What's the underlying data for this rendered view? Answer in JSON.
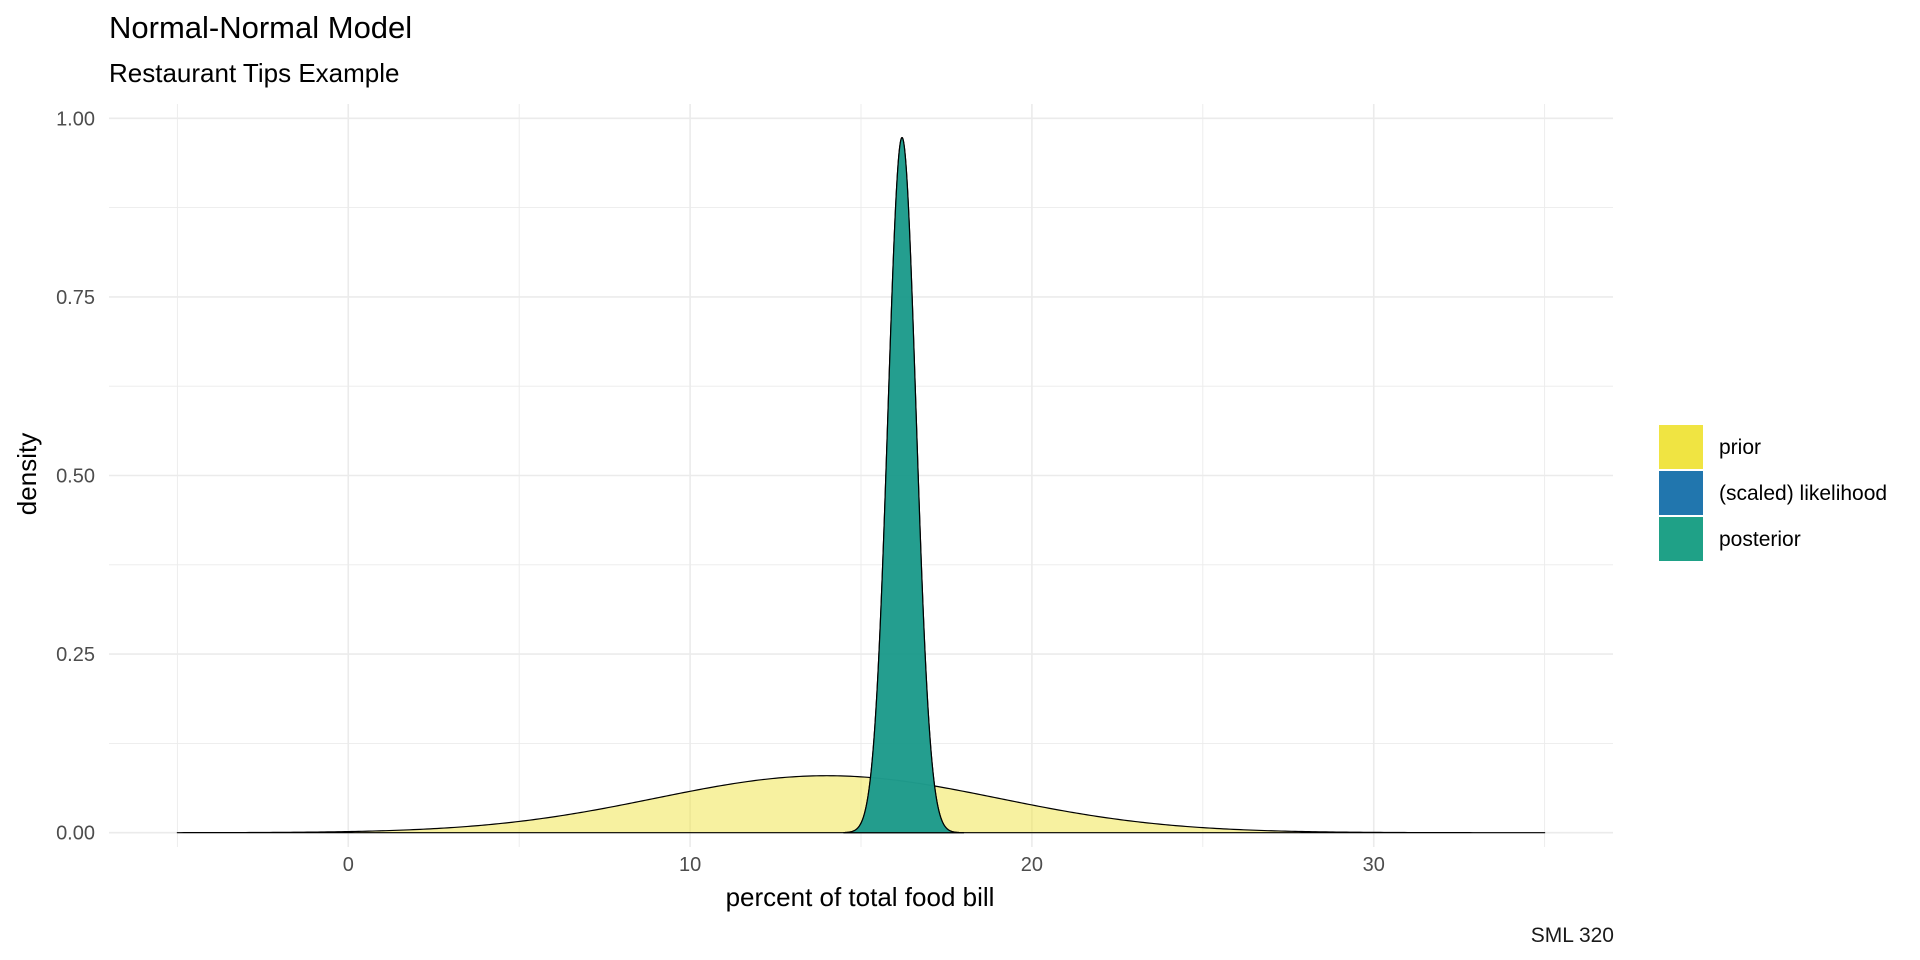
{
  "chart_data": {
    "type": "area",
    "title": "Normal-Normal Model",
    "subtitle": "Restaurant Tips Example",
    "caption": "SML 320",
    "xlabel": "percent of total food bill",
    "ylabel": "density",
    "xlim": [
      -7,
      37
    ],
    "ylim": [
      -0.02,
      1.02
    ],
    "x_ticks": [
      0,
      10,
      20,
      30
    ],
    "x_tick_labels": [
      "0",
      "10",
      "20",
      "30"
    ],
    "y_ticks": [
      0,
      0.25,
      0.5,
      0.75,
      1.0
    ],
    "y_tick_labels": [
      "0.00",
      "0.25",
      "0.50",
      "0.75",
      "1.00"
    ],
    "grid": true,
    "legend_position": "right",
    "series": [
      {
        "name": "prior",
        "color": "#f0e442",
        "fill_opacity": 0.5,
        "dist": "normal",
        "mean": 14,
        "sd": 5,
        "x_range": [
          -5,
          35
        ]
      },
      {
        "name": "(scaled) likelihood",
        "color": "#2176ae",
        "fill_opacity": 0.85,
        "dist": "normal",
        "mean": 16.2,
        "sd": 0.41,
        "x_range": [
          14.5,
          18
        ]
      },
      {
        "name": "posterior",
        "color": "#1fa187",
        "fill_opacity": 0.85,
        "dist": "normal",
        "mean": 16.2,
        "sd": 0.41,
        "x_range": [
          14.5,
          18
        ]
      }
    ]
  }
}
